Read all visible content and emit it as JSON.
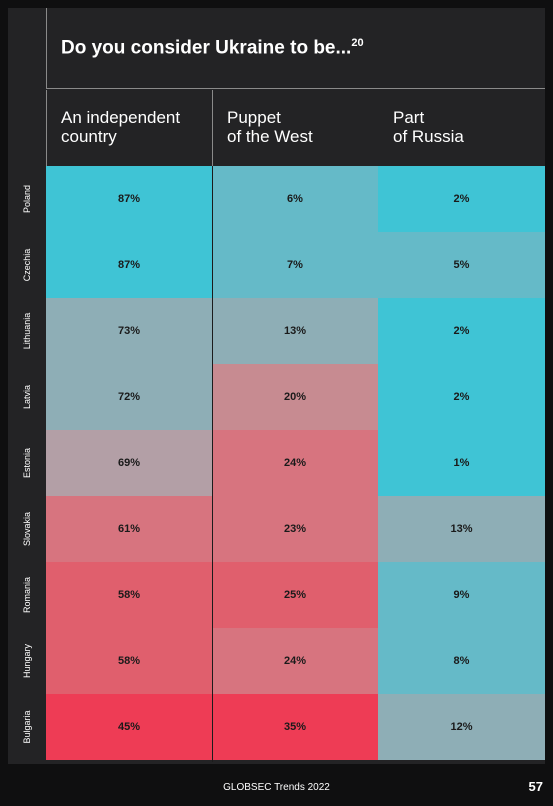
{
  "chart_data": {
    "type": "heatmap",
    "title": "Do you consider Ukraine to be...",
    "title_note": "20",
    "columns": [
      {
        "lines": [
          "An independent",
          "country"
        ]
      },
      {
        "lines": [
          "Puppet",
          "of the West"
        ]
      },
      {
        "lines": [
          "Part",
          "of Russia"
        ]
      }
    ],
    "rows": [
      {
        "label": "Poland",
        "values": [
          "87%",
          "6%",
          "2%"
        ],
        "colors": [
          "#3fc4d5",
          "#65bac8",
          "#3fc4d5"
        ]
      },
      {
        "label": "Czechia",
        "values": [
          "87%",
          "7%",
          "5%"
        ],
        "colors": [
          "#3fc4d5",
          "#65bac8",
          "#65bac8"
        ]
      },
      {
        "label": "Lithuania",
        "values": [
          "73%",
          "13%",
          "2%"
        ],
        "colors": [
          "#8eaeb6",
          "#8eaeb6",
          "#3fc4d5"
        ]
      },
      {
        "label": "Latvia",
        "values": [
          "72%",
          "20%",
          "2%"
        ],
        "colors": [
          "#8eaeb6",
          "#c78b91",
          "#3fc4d5"
        ]
      },
      {
        "label": "Estonia",
        "values": [
          "69%",
          "24%",
          "1%"
        ],
        "colors": [
          "#b39fa6",
          "#d7747f",
          "#3fc4d5"
        ]
      },
      {
        "label": "Slovakia",
        "values": [
          "61%",
          "23%",
          "13%"
        ],
        "colors": [
          "#d7747f",
          "#d7747f",
          "#8eaeb6"
        ]
      },
      {
        "label": "Romania",
        "values": [
          "58%",
          "25%",
          "9%"
        ],
        "colors": [
          "#e05f6d",
          "#e05f6d",
          "#65bac8"
        ]
      },
      {
        "label": "Hungary",
        "values": [
          "58%",
          "24%",
          "8%"
        ],
        "colors": [
          "#e05f6d",
          "#d7747f",
          "#65bac8"
        ]
      },
      {
        "label": "Bulgaria",
        "values": [
          "45%",
          "35%",
          "12%"
        ],
        "colors": [
          "#ee3c55",
          "#ee3c55",
          "#8eaeb6"
        ]
      }
    ]
  },
  "footer": {
    "publication": "GLOBSEC Trends 2022",
    "page_number": "57"
  }
}
